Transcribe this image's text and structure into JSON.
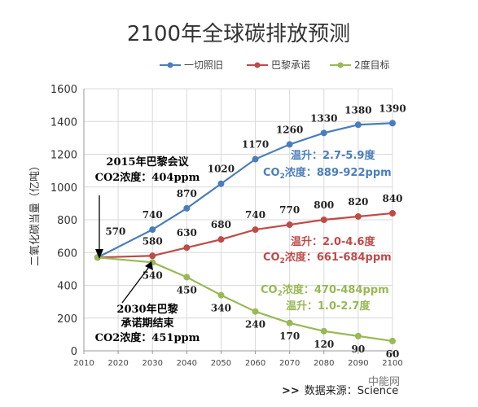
{
  "chart_data": {
    "type": "line",
    "title": "2100年全球碳排放预测",
    "ylabel": "二氧化碳当量（亿吨）",
    "xlabel": "",
    "ylim": [
      0,
      1600
    ],
    "yticks": [
      0,
      200,
      400,
      600,
      800,
      1000,
      1200,
      1400,
      1600
    ],
    "xlim": [
      2010,
      2100
    ],
    "xticks": [
      2010,
      2020,
      2030,
      2040,
      2050,
      2060,
      2070,
      2080,
      2090,
      2100
    ],
    "grid": true,
    "legend_position": "top",
    "series": [
      {
        "name": "一切照旧",
        "color": "#4a7ebb",
        "x": [
          2014,
          2030,
          2040,
          2050,
          2060,
          2070,
          2080,
          2090,
          2100
        ],
        "values": [
          570,
          740,
          870,
          1020,
          1170,
          1260,
          1330,
          1380,
          1390
        ],
        "labels": [
          "",
          "740",
          "870",
          "1020",
          "1170",
          "1260",
          "1330",
          "1380",
          "1390"
        ]
      },
      {
        "name": "巴黎承诺",
        "color": "#be4b48",
        "x": [
          2014,
          2030,
          2040,
          2050,
          2060,
          2070,
          2080,
          2090,
          2100
        ],
        "values": [
          570,
          580,
          630,
          680,
          740,
          770,
          800,
          820,
          840
        ],
        "labels": [
          "",
          "580",
          "630",
          "680",
          "740",
          "770",
          "800",
          "820",
          "840"
        ]
      },
      {
        "name": "2度目标",
        "color": "#98b954",
        "x": [
          2014,
          2030,
          2040,
          2050,
          2060,
          2070,
          2080,
          2090,
          2100
        ],
        "values": [
          570,
          540,
          450,
          340,
          240,
          170,
          120,
          90,
          60
        ],
        "labels": [
          "",
          "540",
          "450",
          "340",
          "240",
          "170",
          "120",
          "90",
          "60"
        ]
      }
    ],
    "start_label": "570",
    "annotations": {
      "paris2015_line1": "2015年巴黎会议",
      "paris2015_line2": "CO2浓度：404ppm",
      "end2030_line1": "2030年巴黎",
      "end2030_line2": "承诺期结束",
      "end2030_line3": "CO2浓度：451ppm",
      "blue_temp": "温升：2.7-5.9度",
      "blue_co2_prefix": "CO",
      "blue_co2_sub": "2",
      "blue_co2_suffix": "浓度：889-922ppm",
      "red_temp": "温升：2.0-4.6度",
      "red_co2_prefix": "CO",
      "red_co2_sub": "2",
      "red_co2_suffix": "浓度：661-684ppm",
      "green_co2_prefix": "CO",
      "green_co2_sub": "2",
      "green_co2_suffix": "浓度：470-484ppm",
      "green_temp": "温升：1.0-2.7度"
    }
  },
  "footer": {
    "arrow": ">>",
    "source": "数据来源：Science"
  },
  "watermark": {
    "text": "中能网"
  }
}
